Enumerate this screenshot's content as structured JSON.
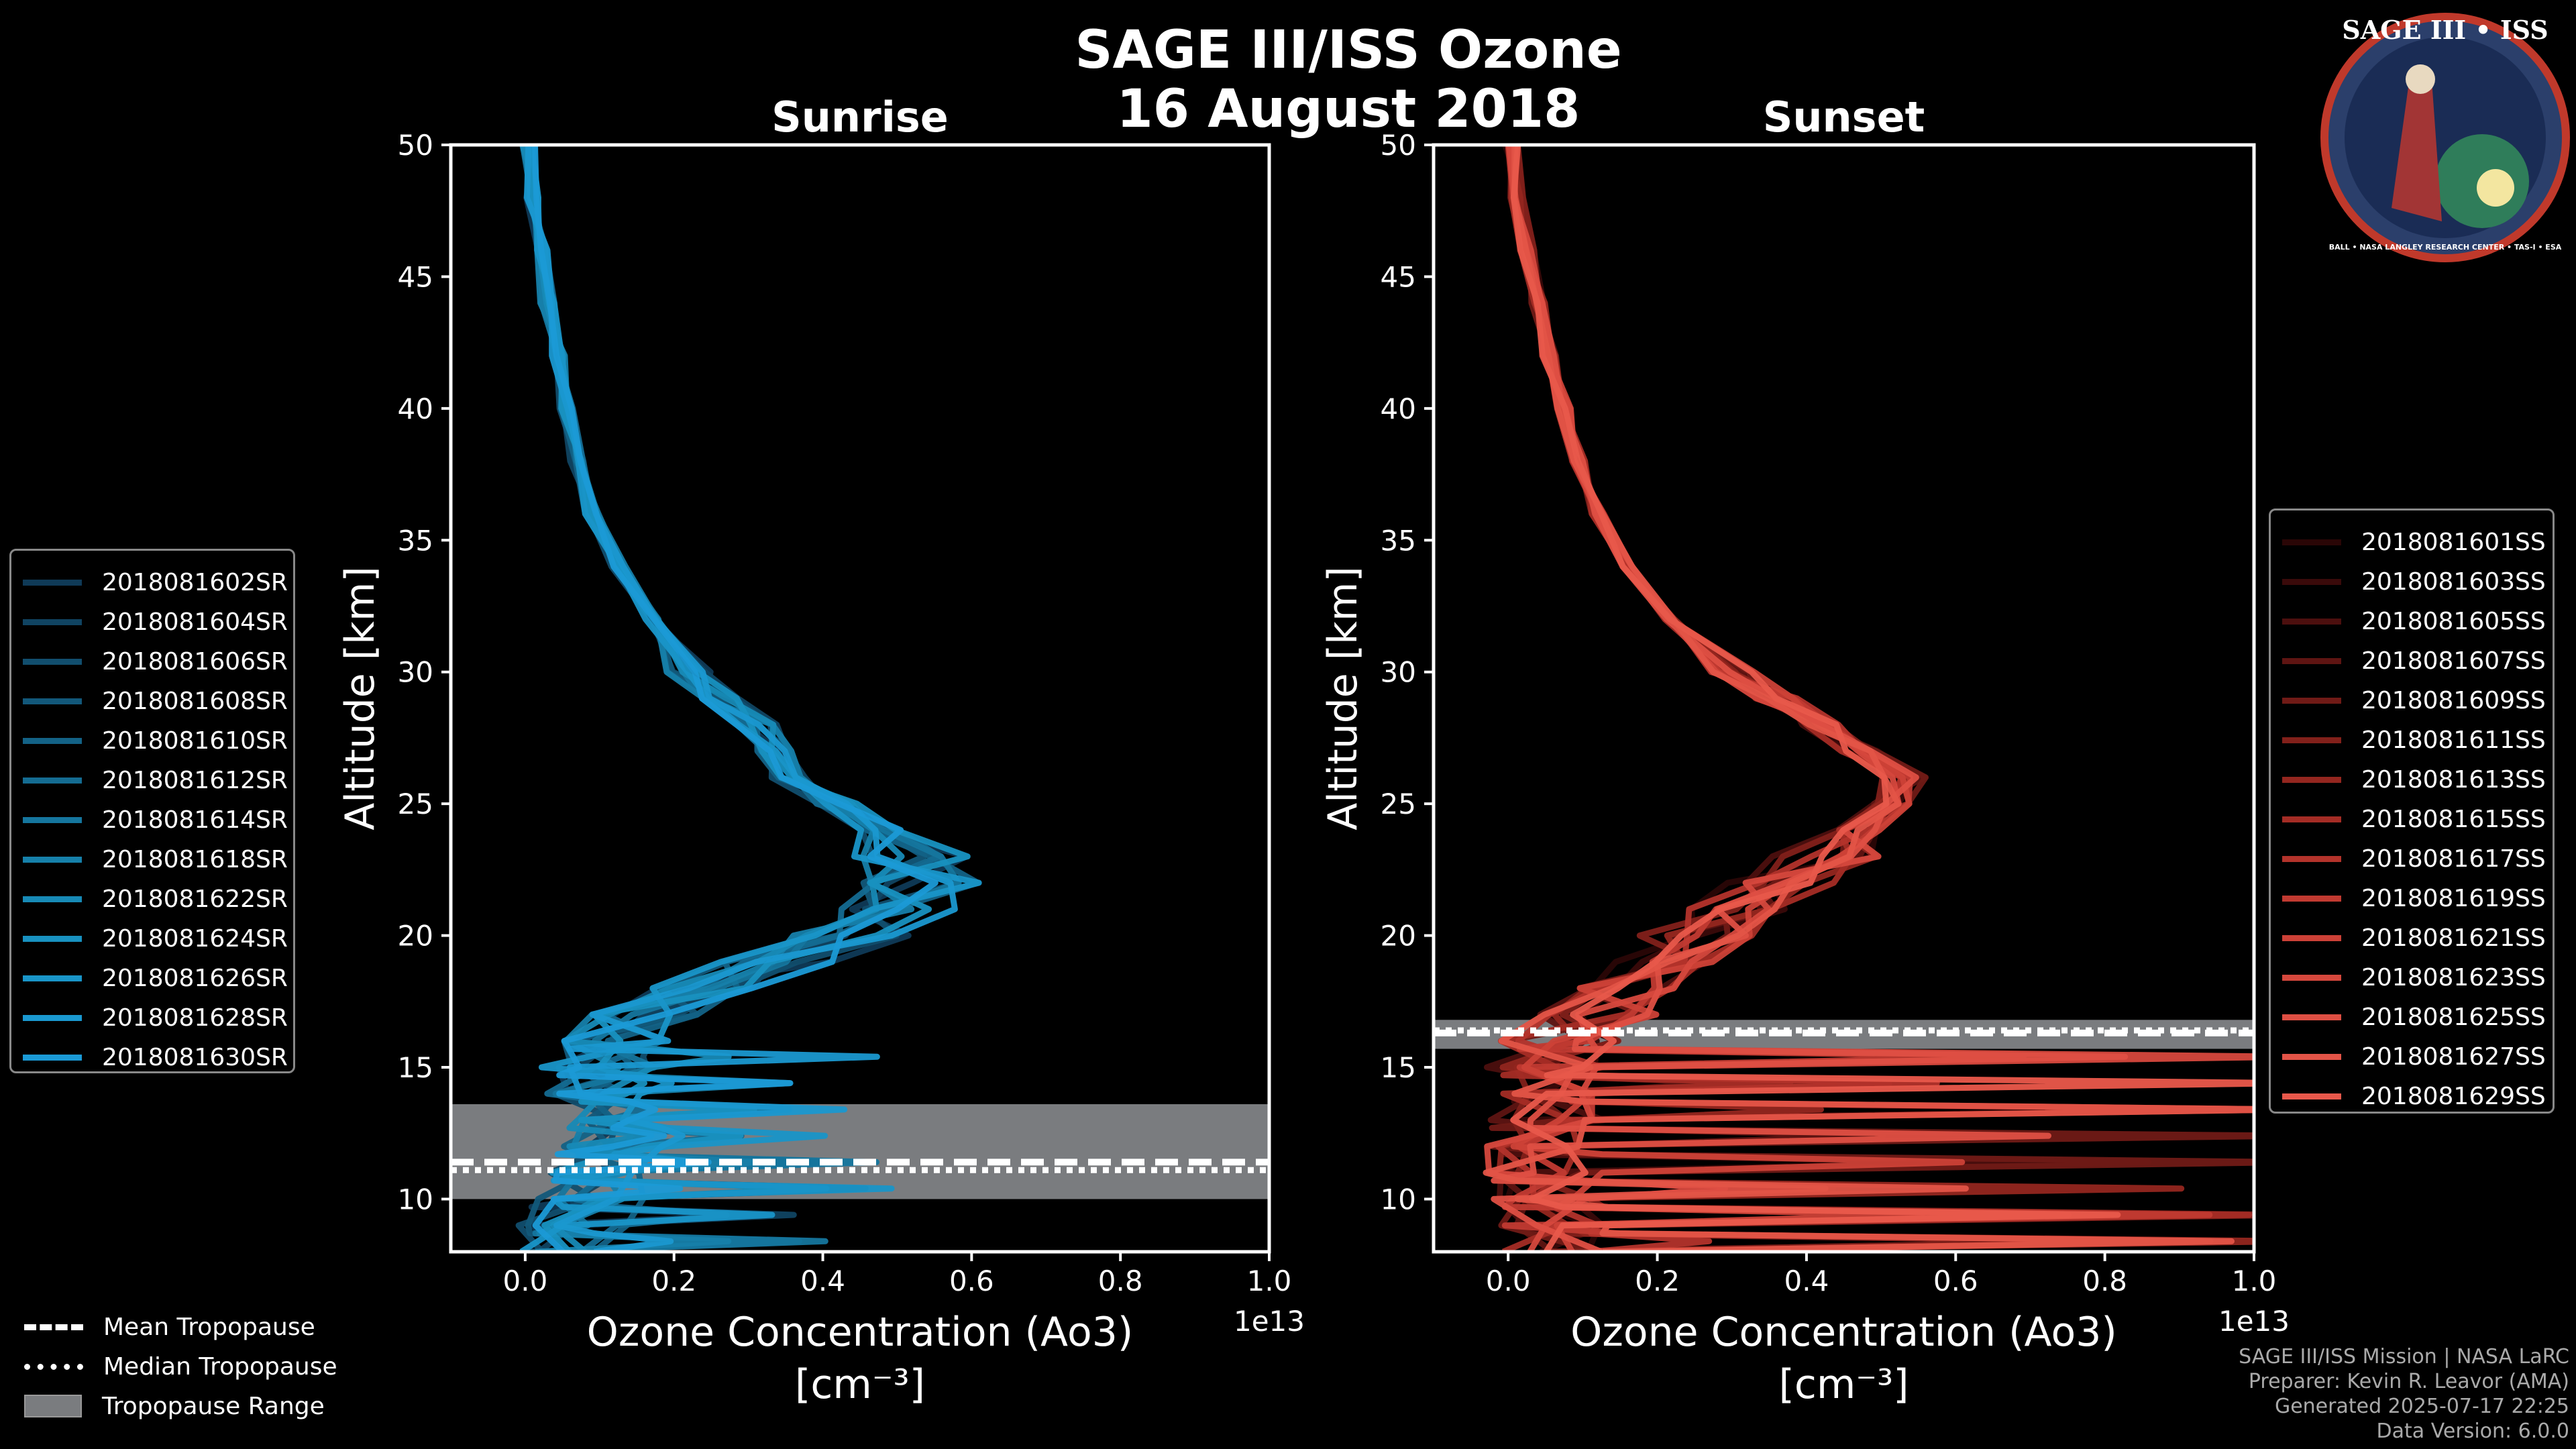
{
  "title": {
    "line1": "SAGE III/ISS Ozone",
    "line2": "16 August 2018"
  },
  "logo": {
    "text": "SAGE III • ISS",
    "footer": "BALL • NASA LANGLEY RESEARCH CENTER • TAS-I • ESA"
  },
  "colors": {
    "sunrise": "#1f9ad6",
    "sunset": "#e8554a",
    "tropopause_range": "#7a7c7f"
  },
  "chart_data": [
    {
      "type": "line",
      "title": "Sunrise",
      "xlabel": "Ozone Concentration (Ao3)",
      "xunit": "[cm⁻³]",
      "ylabel": "Altitude [km]",
      "x_multiplier": "1e13",
      "xlim": [
        -0.1,
        1.0
      ],
      "ylim": [
        8,
        50
      ],
      "xticks": [
        "0.0",
        "0.2",
        "0.4",
        "0.6",
        "0.8",
        "1.0"
      ],
      "yticks": [
        "10",
        "15",
        "20",
        "25",
        "30",
        "35",
        "40",
        "45",
        "50"
      ],
      "series_names": [
        "2018081602SR",
        "2018081604SR",
        "2018081606SR",
        "2018081608SR",
        "2018081610SR",
        "2018081612SR",
        "2018081614SR",
        "2018081618SR",
        "2018081622SR",
        "2018081624SR",
        "2018081626SR",
        "2018081628SR",
        "2018081630SR"
      ],
      "series_colors": [
        "#0f3a57",
        "#104462",
        "#114e6e",
        "#12587a",
        "#136286",
        "#146c92",
        "#15769e",
        "#1680aa",
        "#178ab6",
        "#1891c0",
        "#1995c8",
        "#1a98d0",
        "#1b9ad6"
      ],
      "altitudes": [
        8,
        9,
        10,
        11,
        12,
        13,
        14,
        15,
        16,
        17,
        18,
        19,
        20,
        21,
        22,
        23,
        24,
        25,
        26,
        27,
        28,
        29,
        30,
        32,
        34,
        36,
        38,
        40,
        42,
        44,
        46,
        48,
        50
      ],
      "base_profile": [
        0.06,
        0.07,
        0.08,
        0.1,
        0.12,
        0.11,
        0.1,
        0.1,
        0.12,
        0.17,
        0.25,
        0.34,
        0.44,
        0.5,
        0.53,
        0.52,
        0.48,
        0.42,
        0.36,
        0.33,
        0.31,
        0.26,
        0.22,
        0.17,
        0.125,
        0.09,
        0.07,
        0.055,
        0.045,
        0.03,
        0.02,
        0.01,
        0.005
      ],
      "tropopause": {
        "mean": 11.4,
        "median": 11.1,
        "range": [
          10.0,
          13.6
        ]
      }
    },
    {
      "type": "line",
      "title": "Sunset",
      "xlabel": "Ozone Concentration (Ao3)",
      "xunit": "[cm⁻³]",
      "ylabel": "Altitude [km]",
      "x_multiplier": "1e13",
      "xlim": [
        -0.1,
        1.0
      ],
      "ylim": [
        8,
        50
      ],
      "xticks": [
        "0.0",
        "0.2",
        "0.4",
        "0.6",
        "0.8",
        "1.0"
      ],
      "yticks": [
        "10",
        "15",
        "20",
        "25",
        "30",
        "35",
        "40",
        "45",
        "50"
      ],
      "series_names": [
        "2018081601SS",
        "2018081603SS",
        "2018081605SS",
        "2018081607SS",
        "2018081609SS",
        "2018081611SS",
        "2018081613SS",
        "2018081615SS",
        "2018081617SS",
        "2018081619SS",
        "2018081621SS",
        "2018081623SS",
        "2018081625SS",
        "2018081627SS",
        "2018081629SS"
      ],
      "series_colors": [
        "#2a0606",
        "#3a0a0a",
        "#4c0f0e",
        "#5e1412",
        "#701a16",
        "#82201a",
        "#94261f",
        "#a42c25",
        "#b3332b",
        "#c13a31",
        "#cc4137",
        "#d6483d",
        "#de4f43",
        "#e35447",
        "#e8584b"
      ],
      "altitudes": [
        8,
        9,
        10,
        11,
        12,
        13,
        14,
        15,
        16,
        17,
        18,
        19,
        20,
        21,
        22,
        23,
        24,
        25,
        26,
        27,
        28,
        29,
        30,
        32,
        34,
        36,
        38,
        40,
        42,
        44,
        46,
        48,
        50
      ],
      "base_profile": [
        0.07,
        0.06,
        0.06,
        0.05,
        0.05,
        0.05,
        0.05,
        0.05,
        0.07,
        0.12,
        0.17,
        0.21,
        0.25,
        0.31,
        0.36,
        0.42,
        0.47,
        0.51,
        0.53,
        0.47,
        0.42,
        0.36,
        0.3,
        0.22,
        0.16,
        0.12,
        0.095,
        0.075,
        0.055,
        0.04,
        0.025,
        0.012,
        0.005
      ],
      "tropopause": {
        "mean": 16.3,
        "median": 16.4,
        "range": [
          15.7,
          16.8
        ]
      }
    }
  ],
  "tropo_legend": {
    "mean": "Mean Tropopause",
    "median": "Median Tropopause",
    "range": "Tropopause Range"
  },
  "credits": {
    "line1": "SAGE III/ISS Mission | NASA LaRC",
    "line2": "Preparer: Kevin R. Leavor (AMA)",
    "line3": "Generated 2025-07-17 22:25",
    "line4": "Data Version: 6.0.0"
  }
}
